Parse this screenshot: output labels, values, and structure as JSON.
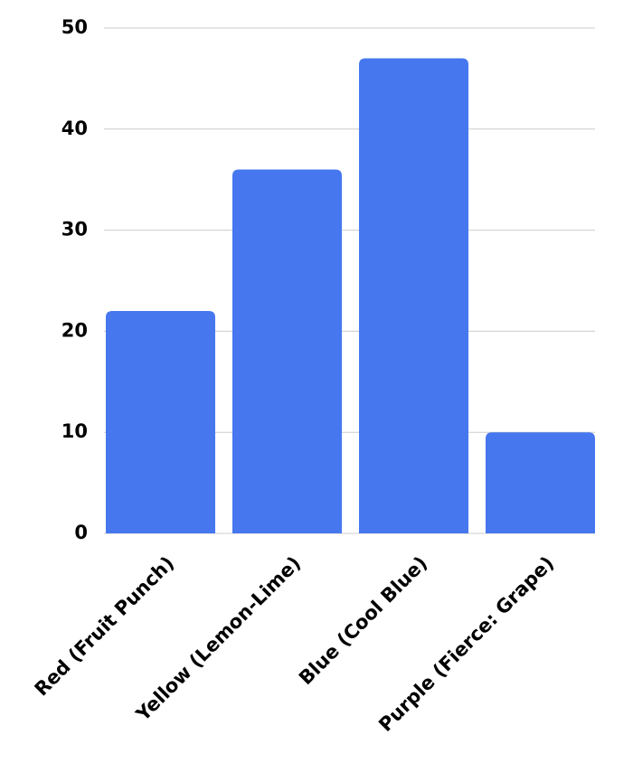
{
  "chart_data": {
    "type": "bar",
    "categories": [
      "Red (Fruit Punch)",
      "Yellow (Lemon-Lime)",
      "Blue (Cool Blue)",
      "Purple (Fierce: Grape)"
    ],
    "values": [
      22,
      36,
      47,
      10
    ],
    "color": "#4677ef",
    "ylim": [
      0,
      50
    ],
    "yticks": [
      0,
      10,
      20,
      30,
      40,
      50
    ],
    "grid": true
  }
}
